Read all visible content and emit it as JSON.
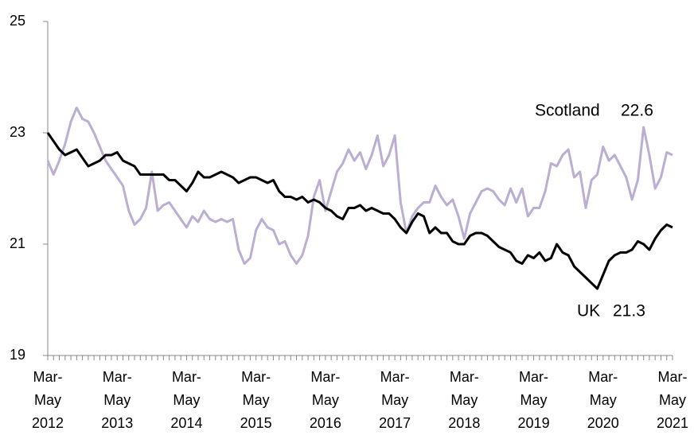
{
  "chart_data": {
    "type": "line",
    "categories": [
      "Mar- May 2012",
      null,
      null,
      null,
      null,
      null,
      null,
      null,
      null,
      null,
      null,
      null,
      "Mar- May 2013",
      null,
      null,
      null,
      null,
      null,
      null,
      null,
      null,
      null,
      null,
      null,
      "Mar- May 2014",
      null,
      null,
      null,
      null,
      null,
      null,
      null,
      null,
      null,
      null,
      null,
      "Mar- May 2015",
      null,
      null,
      null,
      null,
      null,
      null,
      null,
      null,
      null,
      null,
      null,
      "Mar- May 2016",
      null,
      null,
      null,
      null,
      null,
      null,
      null,
      null,
      null,
      null,
      null,
      "Mar- May 2017",
      null,
      null,
      null,
      null,
      null,
      null,
      null,
      null,
      null,
      null,
      null,
      "Mar- May 2018",
      null,
      null,
      null,
      null,
      null,
      null,
      null,
      null,
      null,
      null,
      null,
      "Mar- May 2019",
      null,
      null,
      null,
      null,
      null,
      null,
      null,
      null,
      null,
      null,
      null,
      "Mar- May 2020",
      null,
      null,
      null,
      null,
      null,
      null,
      null,
      null,
      null,
      null,
      null,
      "Mar- May 2021"
    ],
    "series": [
      {
        "name": "Scotland",
        "color": "#bcaed3",
        "values": [
          22.5,
          22.25,
          22.5,
          22.8,
          23.2,
          23.45,
          23.25,
          23.2,
          23.0,
          22.75,
          22.5,
          22.35,
          22.2,
          22.05,
          21.6,
          21.35,
          21.45,
          21.65,
          22.3,
          21.6,
          21.7,
          21.75,
          21.6,
          21.45,
          21.3,
          21.5,
          21.4,
          21.6,
          21.45,
          21.4,
          21.45,
          21.4,
          21.45,
          20.9,
          20.65,
          20.75,
          21.25,
          21.45,
          21.3,
          21.25,
          21.0,
          21.05,
          20.8,
          20.65,
          20.8,
          21.15,
          21.85,
          22.15,
          21.6,
          21.95,
          22.3,
          22.45,
          22.7,
          22.5,
          22.65,
          22.35,
          22.6,
          22.95,
          22.4,
          22.6,
          22.95,
          21.75,
          21.2,
          21.5,
          21.65,
          21.75,
          21.75,
          22.05,
          21.85,
          21.7,
          21.8,
          21.5,
          21.1,
          21.55,
          21.75,
          21.95,
          22.0,
          21.95,
          21.8,
          21.7,
          22.0,
          21.75,
          22.0,
          21.5,
          21.65,
          21.65,
          21.95,
          22.45,
          22.4,
          22.6,
          22.7,
          22.2,
          22.3,
          21.65,
          22.15,
          22.25,
          22.75,
          22.5,
          22.6,
          22.4,
          22.2,
          21.8,
          22.15,
          23.1,
          22.6,
          22.0,
          22.2,
          22.65,
          22.6
        ]
      },
      {
        "name": "UK",
        "color": "#000000",
        "values": [
          23.0,
          22.85,
          22.7,
          22.6,
          22.65,
          22.7,
          22.55,
          22.4,
          22.45,
          22.5,
          22.6,
          22.6,
          22.65,
          22.5,
          22.45,
          22.4,
          22.25,
          22.25,
          22.25,
          22.25,
          22.25,
          22.15,
          22.15,
          22.05,
          21.95,
          22.1,
          22.3,
          22.2,
          22.2,
          22.25,
          22.3,
          22.25,
          22.2,
          22.1,
          22.15,
          22.2,
          22.2,
          22.15,
          22.1,
          22.15,
          21.95,
          21.85,
          21.85,
          21.8,
          21.85,
          21.75,
          21.8,
          21.75,
          21.65,
          21.6,
          21.5,
          21.45,
          21.65,
          21.65,
          21.7,
          21.6,
          21.65,
          21.6,
          21.55,
          21.55,
          21.45,
          21.3,
          21.2,
          21.4,
          21.55,
          21.5,
          21.2,
          21.3,
          21.2,
          21.2,
          21.05,
          21.0,
          21.0,
          21.15,
          21.2,
          21.2,
          21.15,
          21.05,
          20.95,
          20.9,
          20.85,
          20.7,
          20.65,
          20.8,
          20.75,
          20.85,
          20.7,
          20.75,
          21.0,
          20.85,
          20.8,
          20.6,
          20.5,
          20.4,
          20.3,
          20.2,
          20.45,
          20.7,
          20.8,
          20.85,
          20.85,
          20.9,
          21.05,
          21.0,
          20.9,
          21.1,
          21.25,
          21.35,
          21.3
        ]
      }
    ],
    "ylim": [
      19,
      25
    ],
    "yticks": [
      19,
      21,
      23,
      25
    ],
    "grid": false
  }
}
